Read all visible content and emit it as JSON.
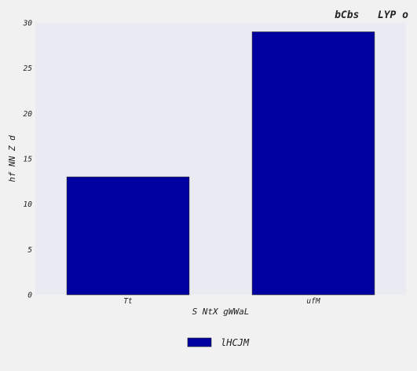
{
  "chart_data": {
    "type": "bar",
    "title": "bCbs   LYP o",
    "xlabel": "S NtX gWWaL",
    "ylabel": "hf NN Z d",
    "categories": [
      "Tt",
      "ufM"
    ],
    "series": [
      {
        "name": "lHCJM",
        "values": [
          13,
          29
        ],
        "color": "#0000a0"
      }
    ],
    "ylim": [
      0,
      30
    ],
    "yticks": [
      0,
      5,
      10,
      15,
      20,
      25,
      30
    ],
    "grid": false,
    "legend": "bottom-center",
    "plot_background": "#eaeaf2",
    "page_background": "#f1f1f1"
  }
}
